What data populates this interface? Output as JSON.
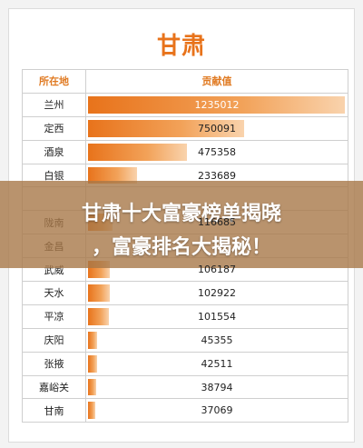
{
  "title": "甘肃",
  "headers": {
    "location": "所在地",
    "contribution": "贡献值"
  },
  "rows": [
    {
      "location": "兰州",
      "value": 1235012
    },
    {
      "location": "定西",
      "value": 750091
    },
    {
      "location": "酒泉",
      "value": 475358
    },
    {
      "location": "白银",
      "value": 233689
    },
    {
      "location": "",
      "value": null
    },
    {
      "location": "陇南",
      "value": 116685
    },
    {
      "location": "金昌",
      "value": null
    },
    {
      "location": "武威",
      "value": 106187
    },
    {
      "location": "天水",
      "value": 102922
    },
    {
      "location": "平凉",
      "value": 101554
    },
    {
      "location": "庆阳",
      "value": 45355
    },
    {
      "location": "张掖",
      "value": 42511
    },
    {
      "location": "嘉峪关",
      "value": 38794
    },
    {
      "location": "甘南",
      "value": 37069
    }
  ],
  "banner": {
    "line1": "甘肃十大富豪榜单揭晓",
    "line2": "，富豪排名大揭秘！"
  },
  "colors": {
    "accent": "#e8731b",
    "banner": "#a87848"
  }
}
